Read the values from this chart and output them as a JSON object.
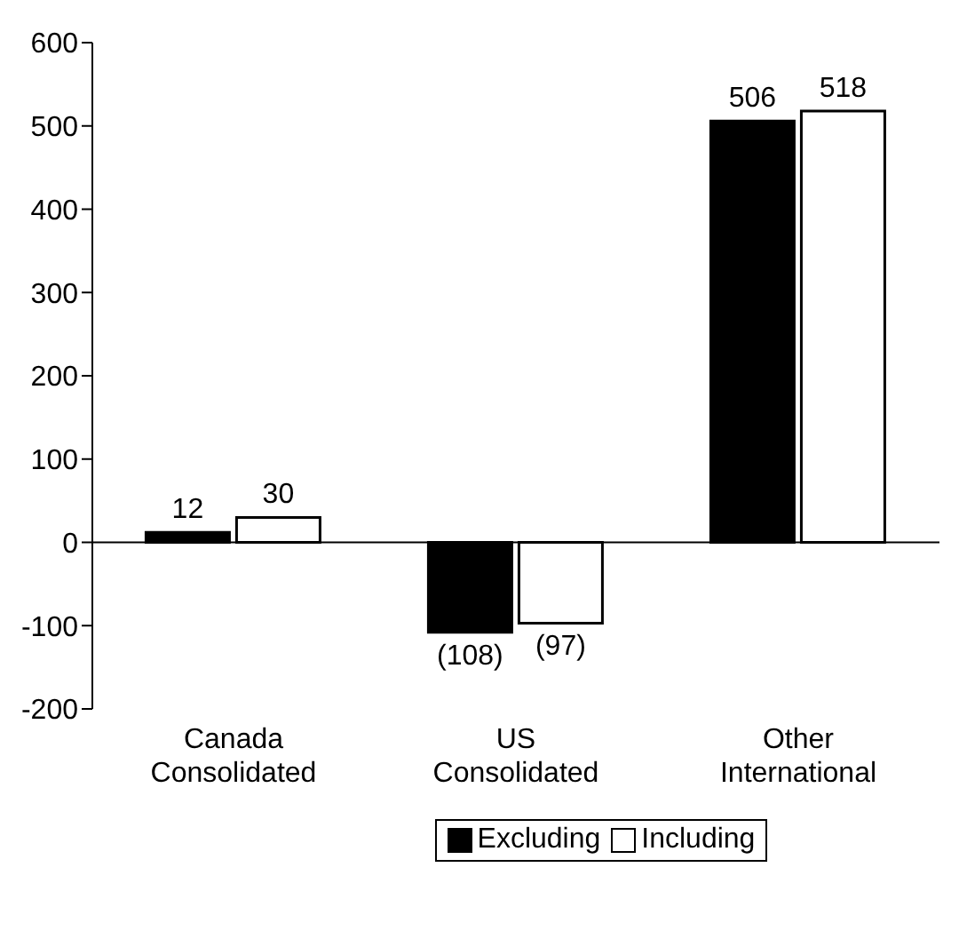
{
  "chart_data": {
    "type": "bar",
    "categories": [
      "Canada Consolidated",
      "US Consolidated",
      "Other International"
    ],
    "series": [
      {
        "name": "Excluding",
        "color": "#000000",
        "values": [
          12,
          -108,
          506
        ],
        "value_labels": [
          "12",
          "(108)",
          "506"
        ]
      },
      {
        "name": "Including",
        "color": "#ffffff",
        "values": [
          30,
          -97,
          518
        ],
        "value_labels": [
          "30",
          "(97)",
          "518"
        ]
      }
    ],
    "ylim": [
      -200,
      600
    ],
    "yticks": [
      -200,
      -100,
      0,
      100,
      200,
      300,
      400,
      500,
      600
    ],
    "legend": "bottom"
  }
}
